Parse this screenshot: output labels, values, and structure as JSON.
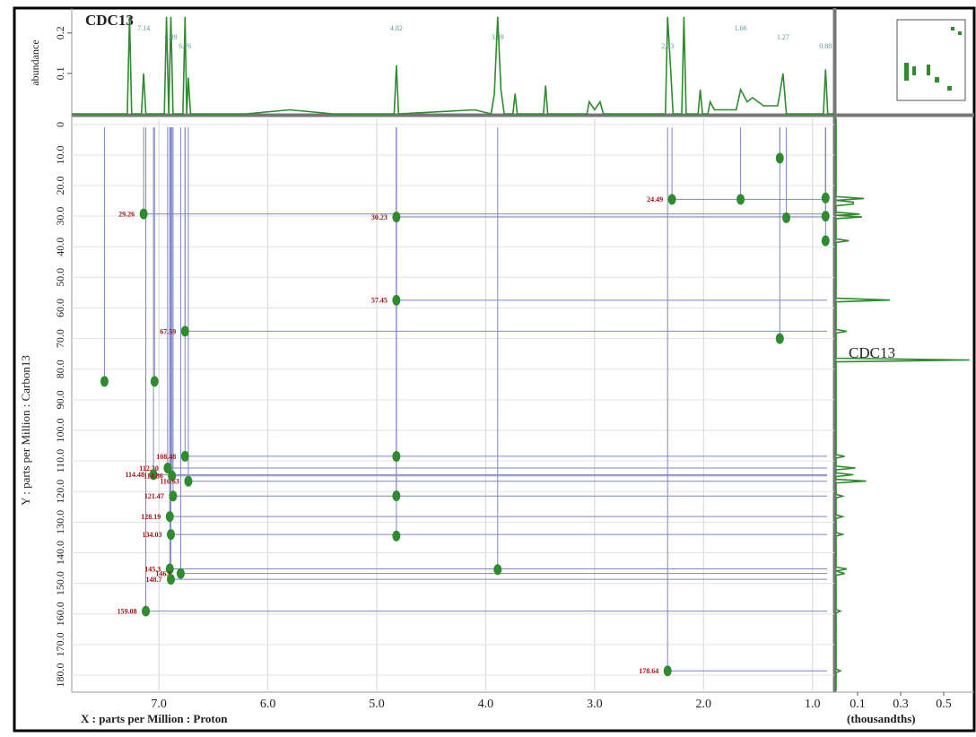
{
  "chart_data": [
    {
      "type": "line",
      "orientation": "vertical",
      "annotation": "CDC13",
      "y_label": "abundance",
      "color": "#2e8b2e",
      "xlim": [
        7.8,
        0.8
      ],
      "ylim": [
        0,
        0.255
      ],
      "yticks": [
        0.1,
        0.2
      ],
      "peak_labels": [
        {
          "value": 7.14,
          "label": "7.14"
        },
        {
          "value": 6.89,
          "label": "6.89"
        },
        {
          "value": 6.76,
          "label": "6.76"
        },
        {
          "value": 4.82,
          "label": "4.82"
        },
        {
          "value": 3.89,
          "label": "3.89"
        },
        {
          "value": 2.33,
          "label": "2.33"
        },
        {
          "value": 1.66,
          "label": "1.66"
        },
        {
          "value": 1.27,
          "label": "1.27"
        },
        {
          "value": 0.88,
          "label": "0.88"
        }
      ],
      "x": [
        7.8,
        7.29,
        7.27,
        7.25,
        7.16,
        7.14,
        7.12,
        6.95,
        6.93,
        6.91,
        6.89,
        6.87,
        6.78,
        6.76,
        6.745,
        6.73,
        6.71,
        6.2,
        5.8,
        5.4,
        4.84,
        4.82,
        4.8,
        4.1,
        3.95,
        3.92,
        3.89,
        3.86,
        3.83,
        3.75,
        3.73,
        3.71,
        3.47,
        3.45,
        3.43,
        3.07,
        3.05,
        3.0,
        2.95,
        2.92,
        2.35,
        2.33,
        2.3,
        2.28,
        2.2,
        2.18,
        2.16,
        2.05,
        2.03,
        2.01,
        1.96,
        1.94,
        1.9,
        1.7,
        1.66,
        1.6,
        1.55,
        1.45,
        1.32,
        1.3,
        1.27,
        1.24,
        0.9,
        0.88,
        0.86,
        0.8
      ],
      "values": [
        0,
        0,
        0.24,
        0,
        0,
        0.1,
        0,
        0,
        0.24,
        0,
        0.24,
        0,
        0,
        0.24,
        0,
        0.09,
        0,
        0,
        0.01,
        0,
        0,
        0.12,
        0,
        0.01,
        0,
        0.05,
        0.24,
        0.06,
        0,
        0,
        0.05,
        0,
        0,
        0.07,
        0,
        0,
        0.03,
        0.01,
        0.03,
        0,
        0,
        0.24,
        0.1,
        0,
        0,
        0.24,
        0,
        0,
        0.06,
        0,
        0,
        0.03,
        0.01,
        0.01,
        0.06,
        0.03,
        0.04,
        0.02,
        0.02,
        0.05,
        0.1,
        0,
        0,
        0.11,
        0,
        0
      ]
    },
    {
      "type": "scatter",
      "x_label": "X : parts per Million : Proton",
      "y_label": "Y : parts per Million : Carbon13",
      "color": "#2e8b2e",
      "line_color": "#7f86c9",
      "label_color": "#a01414",
      "grid": true,
      "y_reverse": true,
      "xlim": [
        7.8,
        0.8
      ],
      "ylim": [
        -2,
        185
      ],
      "xticks": [
        {
          "value": 7,
          "label": "7.0"
        },
        {
          "value": 6,
          "label": "6.0"
        },
        {
          "value": 5,
          "label": "5.0"
        },
        {
          "value": 4,
          "label": "4.0"
        },
        {
          "value": 3,
          "label": "3.0"
        },
        {
          "value": 2,
          "label": "2.0"
        },
        {
          "value": 1,
          "label": "1.0"
        }
      ],
      "yticks": [
        0,
        {
          "value": 10,
          "label": "10.0"
        },
        {
          "value": 20,
          "label": "20.0"
        },
        {
          "value": 30,
          "label": "30.0"
        },
        {
          "value": 40,
          "label": "40.0"
        },
        {
          "value": 50,
          "label": "50.0"
        },
        {
          "value": 60,
          "label": "60.0"
        },
        {
          "value": 70,
          "label": "70.0"
        },
        {
          "value": 80,
          "label": "80.0"
        },
        {
          "value": 90,
          "label": "90.0"
        },
        {
          "value": 100,
          "label": "100.0"
        },
        {
          "value": 110,
          "label": "110.0"
        },
        {
          "value": 120,
          "label": "120.0"
        },
        {
          "value": 130,
          "label": "130.0"
        },
        {
          "value": 140,
          "label": "140.0"
        },
        {
          "value": 150,
          "label": "150.0"
        },
        {
          "value": 160,
          "label": "160.0"
        },
        {
          "value": 170,
          "label": "170.0"
        },
        {
          "value": 180,
          "label": "180.0"
        }
      ],
      "x": [
        7.14,
        4.82,
        2.29,
        4.82,
        6.76,
        6.76,
        6.92,
        7.05,
        6.88,
        6.73,
        6.87,
        6.9,
        6.89,
        6.9,
        6.8,
        6.89,
        7.12,
        2.33,
        4.82,
        4.82,
        4.82,
        3.89,
        1.66,
        1.3,
        1.3,
        1.24,
        0.88,
        0.88,
        0.88,
        7.5,
        7.04
      ],
      "values": [
        29.26,
        30.23,
        24.49,
        57.45,
        67.59,
        108.48,
        112.3,
        114.48,
        114.86,
        116.63,
        121.47,
        128.19,
        134.03,
        145.3,
        146.8,
        148.7,
        159.08,
        178.64,
        108.5,
        121.4,
        134.5,
        145.5,
        24.5,
        11,
        70,
        30.5,
        24,
        30,
        38,
        84,
        84
      ],
      "value_labels": [
        "29.26",
        "30.23",
        "24.49",
        "57.45",
        "67.59",
        "108.48",
        "112.30",
        "114.48",
        "114.86",
        "116.63",
        "121.47",
        "128.19",
        "134.03",
        "145.3",
        "146.8",
        "148.7",
        "159.08",
        "178.64",
        null,
        null,
        null,
        null,
        null,
        null,
        null,
        null,
        null,
        null,
        null,
        null,
        null
      ]
    },
    {
      "type": "line",
      "orientation": "horizontal",
      "annotation": "CDC13",
      "x_label": "(thousandths)",
      "color": "#2e8b2e",
      "xlim": [
        0,
        0.65
      ],
      "ylim": [
        -2,
        185
      ],
      "xticks": [
        0.1,
        0.3,
        0.5
      ],
      "y": [
        -2,
        23.6,
        24.2,
        24.8,
        25.4,
        26,
        26.6,
        28.7,
        29.3,
        29.7,
        30.2,
        30.8,
        37.4,
        38,
        38.6,
        56.8,
        57.4,
        58,
        67,
        67.6,
        68.2,
        76.4,
        77,
        77.6,
        107.9,
        108.5,
        109.1,
        111.7,
        112.3,
        112.9,
        113.9,
        114.5,
        115.1,
        116,
        116.6,
        117.2,
        120.9,
        121.5,
        122.1,
        127.6,
        128.2,
        128.8,
        133.4,
        134,
        134.6,
        144.7,
        145.3,
        146,
        146.8,
        147.4,
        158.5,
        159.1,
        159.7,
        178,
        178.6,
        179.2,
        185
      ],
      "values": [
        0,
        0,
        0.13,
        0,
        0.08,
        0.08,
        0,
        0,
        0.11,
        0,
        0.12,
        0,
        0,
        0.06,
        0,
        0,
        0.25,
        0,
        0,
        0.05,
        0,
        0,
        0.62,
        0,
        0,
        0.04,
        0,
        0,
        0.09,
        0,
        0,
        0.08,
        0,
        0,
        0.14,
        0,
        0,
        0.03,
        0,
        0,
        0.03,
        0,
        0,
        0.03,
        0,
        0,
        0.05,
        0,
        0.04,
        0,
        0,
        0.02,
        0,
        0,
        0.02,
        0,
        0
      ]
    }
  ]
}
